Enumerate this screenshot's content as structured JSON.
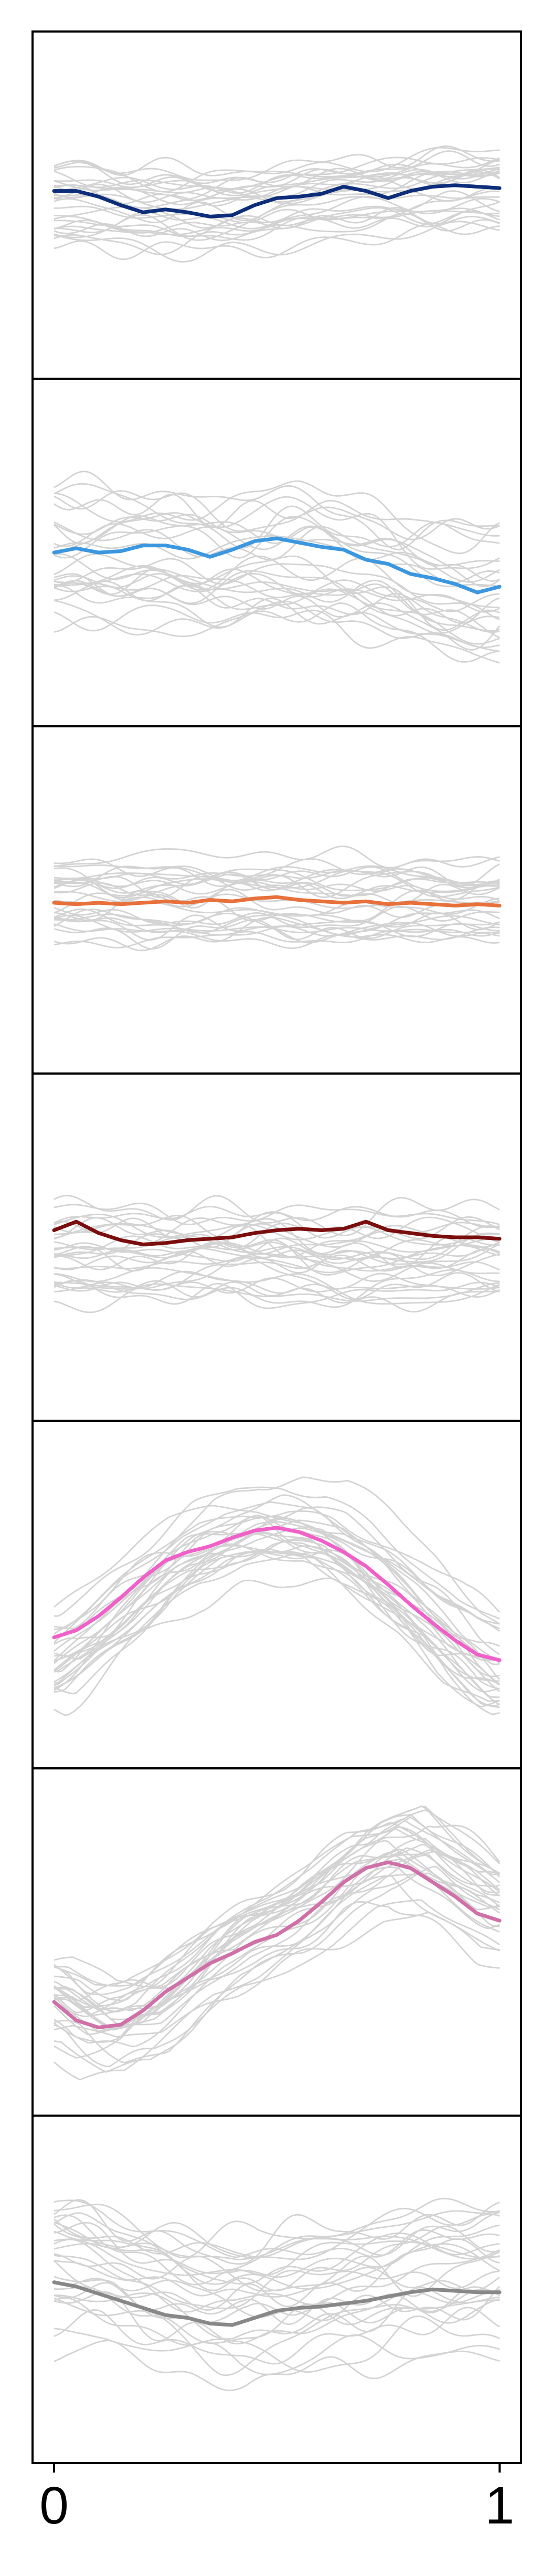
{
  "chart_data": {
    "type": "line",
    "xlim": [
      0,
      1
    ],
    "x_tick_labels": [
      "0",
      "1"
    ],
    "ylim": [
      -1,
      1
    ],
    "grid": false,
    "background_color": "#d3d3d3",
    "sample_count": 28,
    "panels": [
      {
        "color": "#0d2d7a",
        "mean_x": [
          0,
          0.05,
          0.1,
          0.15,
          0.2,
          0.25,
          0.3,
          0.35,
          0.4,
          0.45,
          0.5,
          0.55,
          0.6,
          0.65,
          0.7,
          0.75,
          0.8,
          0.85,
          0.9,
          0.95,
          1
        ],
        "mean_y": [
          0.1,
          0.1,
          0.06,
          0.0,
          -0.05,
          -0.03,
          -0.05,
          -0.08,
          -0.07,
          0.0,
          0.05,
          0.06,
          0.08,
          0.13,
          0.1,
          0.05,
          0.1,
          0.13,
          0.14,
          0.13,
          0.12
        ],
        "spread": 0.32,
        "trend": [
          0,
          -0.02,
          -0.04,
          -0.06,
          -0.05,
          -0.02,
          0.02,
          0.05,
          0.07,
          0.08,
          0.1
        ]
      },
      {
        "color": "#3a97e0",
        "mean_x": [
          0,
          0.05,
          0.1,
          0.15,
          0.2,
          0.25,
          0.3,
          0.35,
          0.4,
          0.45,
          0.5,
          0.55,
          0.6,
          0.65,
          0.7,
          0.75,
          0.8,
          0.85,
          0.9,
          0.95,
          1
        ],
        "mean_y": [
          0.0,
          0.03,
          0.0,
          0.01,
          0.05,
          0.05,
          0.02,
          -0.03,
          0.02,
          0.08,
          0.1,
          0.07,
          0.04,
          0.02,
          -0.05,
          -0.08,
          -0.15,
          -0.18,
          -0.22,
          -0.28,
          -0.24
        ],
        "spread": 0.55,
        "trend": [
          0.05,
          0.04,
          0.02,
          0.01,
          0.02,
          0.03,
          0.01,
          -0.05,
          -0.15,
          -0.22,
          -0.25
        ]
      },
      {
        "color": "#e8703a",
        "mean_x": [
          0,
          0.05,
          0.1,
          0.15,
          0.2,
          0.25,
          0.3,
          0.35,
          0.4,
          0.45,
          0.5,
          0.55,
          0.6,
          0.65,
          0.7,
          0.75,
          0.8,
          0.85,
          0.9,
          0.95,
          1
        ],
        "mean_y": [
          -0.02,
          -0.03,
          -0.02,
          -0.03,
          -0.02,
          -0.01,
          -0.02,
          0.0,
          -0.01,
          0.01,
          0.02,
          0.0,
          -0.01,
          -0.02,
          -0.01,
          -0.03,
          -0.02,
          -0.03,
          -0.04,
          -0.03,
          -0.04
        ],
        "spread": 0.36,
        "trend": [
          0,
          0,
          0,
          0,
          0,
          0,
          0,
          0,
          0,
          0,
          0
        ]
      },
      {
        "color": "#7a0d0d",
        "mean_x": [
          0,
          0.05,
          0.1,
          0.15,
          0.2,
          0.25,
          0.3,
          0.35,
          0.4,
          0.45,
          0.5,
          0.55,
          0.6,
          0.65,
          0.7,
          0.75,
          0.8,
          0.85,
          0.9,
          0.95,
          1
        ],
        "mean_y": [
          0.12,
          0.18,
          0.1,
          0.05,
          0.02,
          0.03,
          0.05,
          0.06,
          0.07,
          0.1,
          0.12,
          0.13,
          0.12,
          0.13,
          0.18,
          0.12,
          0.1,
          0.08,
          0.07,
          0.07,
          0.06
        ],
        "spread": 0.42,
        "trend": [
          0,
          0,
          0,
          0,
          0,
          0,
          0,
          0,
          0,
          0,
          0
        ]
      },
      {
        "color": "#f060c8",
        "mean_x": [
          0,
          0.05,
          0.1,
          0.15,
          0.2,
          0.25,
          0.3,
          0.35,
          0.4,
          0.45,
          0.5,
          0.55,
          0.6,
          0.65,
          0.7,
          0.75,
          0.8,
          0.85,
          0.9,
          0.95,
          1
        ],
        "mean_y": [
          -0.3,
          -0.25,
          -0.15,
          -0.02,
          0.12,
          0.24,
          0.3,
          0.34,
          0.4,
          0.45,
          0.47,
          0.44,
          0.38,
          0.3,
          0.2,
          0.07,
          -0.07,
          -0.2,
          -0.32,
          -0.42,
          -0.46
        ],
        "spread": 0.35,
        "trend": [
          -0.45,
          -0.2,
          0.05,
          0.3,
          0.45,
          0.5,
          0.45,
          0.25,
          0.0,
          -0.3,
          -0.5
        ]
      },
      {
        "color": "#d070a8",
        "mean_x": [
          0,
          0.05,
          0.1,
          0.15,
          0.2,
          0.25,
          0.3,
          0.35,
          0.4,
          0.45,
          0.5,
          0.55,
          0.6,
          0.65,
          0.7,
          0.75,
          0.8,
          0.85,
          0.9,
          0.95,
          1
        ],
        "mean_y": [
          -0.42,
          -0.55,
          -0.6,
          -0.58,
          -0.48,
          -0.35,
          -0.25,
          -0.15,
          -0.08,
          0.0,
          0.05,
          0.15,
          0.28,
          0.42,
          0.52,
          0.56,
          0.52,
          0.42,
          0.32,
          0.2,
          0.15
        ],
        "spread": 0.3,
        "trend": [
          -0.45,
          -0.65,
          -0.6,
          -0.35,
          -0.1,
          0.05,
          0.25,
          0.5,
          0.62,
          0.4,
          0.18
        ]
      },
      {
        "color": "#888888",
        "mean_x": [
          0,
          0.05,
          0.1,
          0.15,
          0.2,
          0.25,
          0.3,
          0.35,
          0.4,
          0.45,
          0.5,
          0.55,
          0.6,
          0.65,
          0.7,
          0.75,
          0.8,
          0.85,
          0.9,
          0.95,
          1
        ],
        "mean_y": [
          0.05,
          0.02,
          -0.03,
          -0.08,
          -0.13,
          -0.18,
          -0.2,
          -0.24,
          -0.25,
          -0.2,
          -0.15,
          -0.13,
          -0.12,
          -0.1,
          -0.08,
          -0.05,
          -0.02,
          0.0,
          -0.01,
          -0.02,
          -0.02
        ],
        "spread": 0.6,
        "trend": [
          0.05,
          0.0,
          -0.1,
          -0.18,
          -0.22,
          -0.18,
          -0.12,
          -0.08,
          -0.04,
          -0.02,
          -0.02
        ]
      }
    ]
  }
}
